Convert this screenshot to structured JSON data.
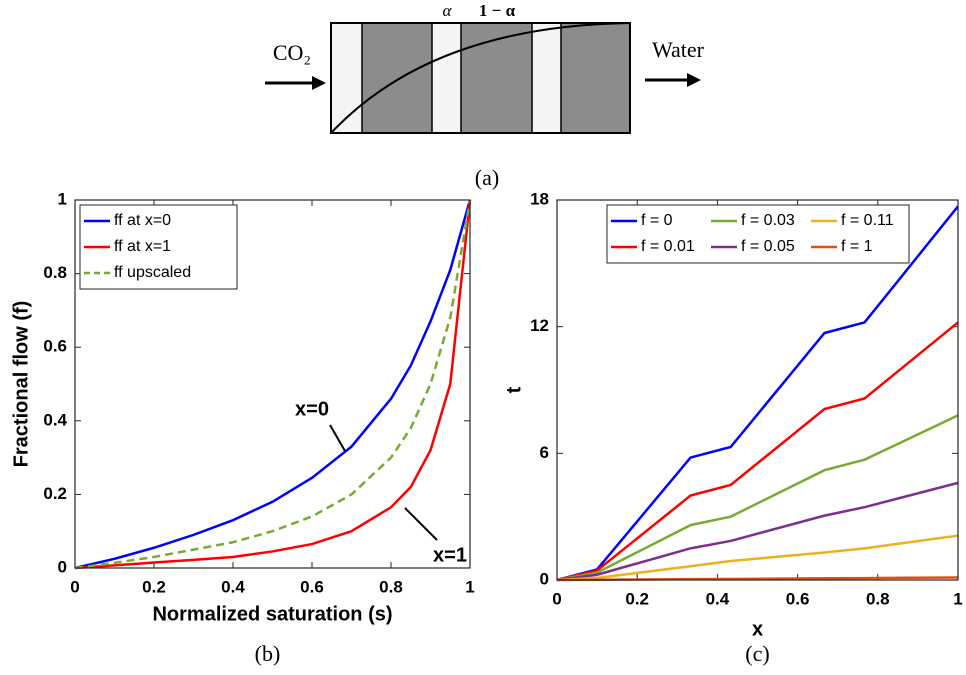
{
  "diagram": {
    "left_label": "CO₂",
    "right_label": "Water",
    "alpha": "α",
    "one_minus_alpha": "1 − α",
    "panel_label": "(a)"
  },
  "chart_data": [
    {
      "type": "line",
      "panel_label": "(b)",
      "x_label": "Normalized saturation (s)",
      "y_label": "Fractional flow (f)",
      "x": [
        0,
        0.1,
        0.2,
        0.3,
        0.4,
        0.5,
        0.6,
        0.7,
        0.8,
        0.85,
        0.9,
        0.95,
        1
      ],
      "series": [
        {
          "name": "ff at x=0",
          "color": "#0000ff",
          "dash": false,
          "values": [
            0,
            0.025,
            0.055,
            0.09,
            0.13,
            0.18,
            0.245,
            0.33,
            0.46,
            0.55,
            0.67,
            0.81,
            1
          ]
        },
        {
          "name": "ff at x=1",
          "color": "#ff0000",
          "dash": false,
          "values": [
            0,
            0.007,
            0.015,
            0.022,
            0.03,
            0.045,
            0.065,
            0.1,
            0.165,
            0.22,
            0.32,
            0.5,
            1
          ]
        },
        {
          "name": "ff upscaled",
          "color": "#77ac30",
          "dash": true,
          "values": [
            0,
            0.014,
            0.03,
            0.05,
            0.07,
            0.1,
            0.14,
            0.2,
            0.3,
            0.38,
            0.5,
            0.68,
            1
          ]
        }
      ],
      "annotations": [
        "x=0",
        "x=1"
      ],
      "xlim": [
        0,
        1
      ],
      "xticks": [
        0,
        0.2,
        0.4,
        0.6,
        0.8,
        1
      ],
      "ylim": [
        0,
        1
      ],
      "yticks": [
        0,
        0.2,
        0.4,
        0.6,
        0.8,
        1
      ],
      "legend": "upper left"
    },
    {
      "type": "line",
      "panel_label": "(c)",
      "x_label": "x",
      "y_label": "t",
      "x": [
        0,
        0.1,
        0.333,
        0.433,
        0.667,
        0.767,
        1
      ],
      "series": [
        {
          "name": "f = 0",
          "color": "#0000ff",
          "dash": false,
          "values": [
            0,
            0.5,
            5.8,
            6.3,
            11.7,
            12.2,
            17.7
          ]
        },
        {
          "name": "f = 0.01",
          "color": "#ff0000",
          "dash": false,
          "values": [
            0,
            0.45,
            4.0,
            4.5,
            8.1,
            8.6,
            12.2
          ]
        },
        {
          "name": "f = 0.03",
          "color": "#77ac30",
          "dash": false,
          "values": [
            0,
            0.35,
            2.6,
            3.0,
            5.2,
            5.7,
            7.8
          ]
        },
        {
          "name": "f = 0.05",
          "color": "#7e2f8e",
          "dash": false,
          "values": [
            0,
            0.25,
            1.5,
            1.85,
            3.05,
            3.45,
            4.6
          ]
        },
        {
          "name": "f = 0.11",
          "color": "#edb120",
          "dash": false,
          "values": [
            0,
            0.1,
            0.65,
            0.9,
            1.3,
            1.5,
            2.1
          ]
        },
        {
          "name": "f = 1",
          "color": "#d95319",
          "dash": false,
          "values": [
            0,
            0.01,
            0.04,
            0.05,
            0.08,
            0.09,
            0.12
          ]
        }
      ],
      "xlim": [
        0,
        1
      ],
      "xticks": [
        0,
        0.2,
        0.4,
        0.6,
        0.8,
        1
      ],
      "ylim": [
        0,
        18
      ],
      "yticks": [
        0,
        6,
        12,
        18
      ],
      "legend": "upper left"
    }
  ]
}
